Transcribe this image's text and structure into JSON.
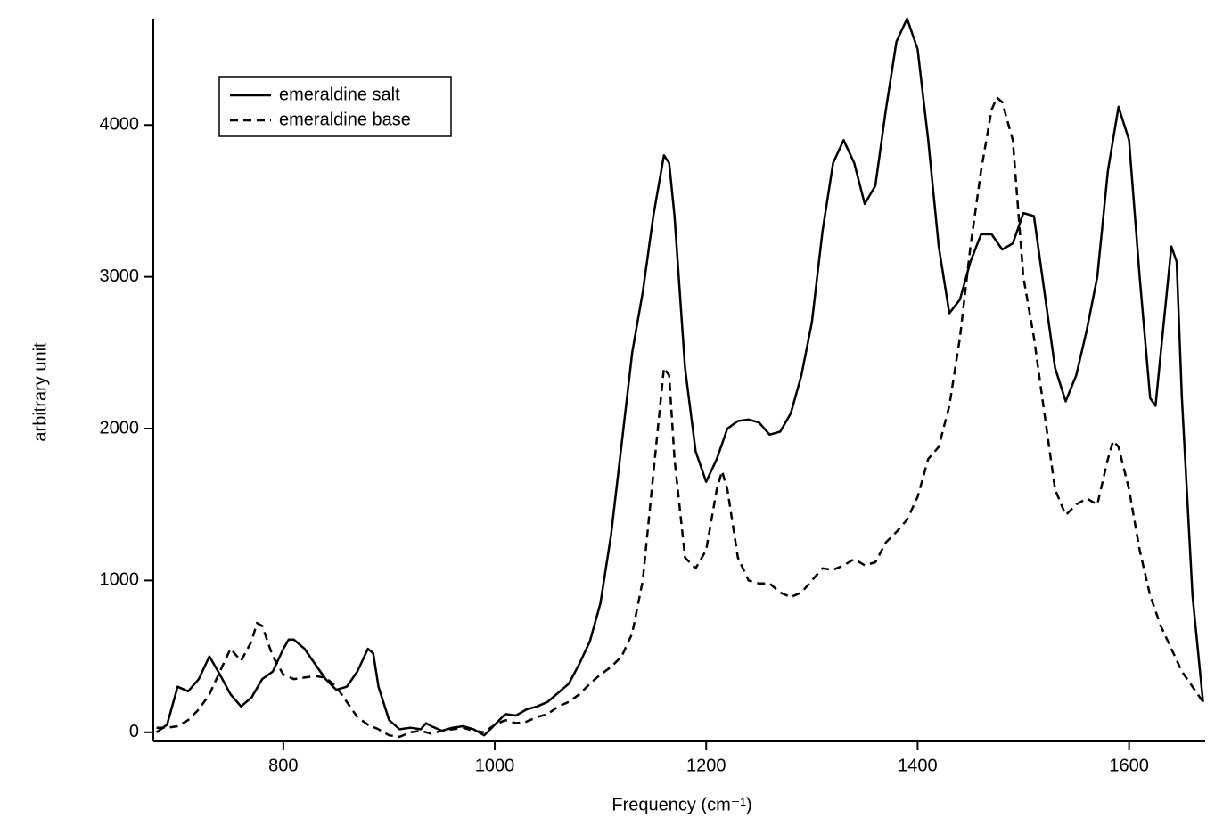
{
  "chart_data": {
    "type": "line",
    "xlabel": "Frequency (cm⁻¹)",
    "ylabel": "arbitrary unit",
    "xlim": [
      677,
      1672
    ],
    "ylim": [
      -60,
      4700
    ],
    "xticks": [
      800,
      1000,
      1200,
      1400,
      1600
    ],
    "yticks": [
      0,
      1000,
      2000,
      3000,
      4000
    ],
    "legend": "top-left",
    "series": [
      {
        "name": "emeraldine salt",
        "color": "#000000",
        "dash": "solid",
        "x": [
          680,
          690,
          700,
          710,
          720,
          730,
          740,
          750,
          760,
          770,
          780,
          790,
          800,
          805,
          810,
          820,
          830,
          840,
          850,
          860,
          870,
          880,
          885,
          890,
          900,
          910,
          920,
          930,
          935,
          940,
          950,
          960,
          970,
          980,
          990,
          1000,
          1010,
          1020,
          1030,
          1040,
          1050,
          1060,
          1070,
          1080,
          1090,
          1100,
          1110,
          1120,
          1130,
          1140,
          1150,
          1160,
          1165,
          1170,
          1180,
          1190,
          1200,
          1210,
          1220,
          1230,
          1240,
          1250,
          1260,
          1270,
          1280,
          1290,
          1300,
          1310,
          1320,
          1330,
          1340,
          1350,
          1360,
          1370,
          1380,
          1390,
          1400,
          1410,
          1420,
          1430,
          1440,
          1450,
          1460,
          1470,
          1480,
          1490,
          1500,
          1510,
          1520,
          1530,
          1540,
          1550,
          1560,
          1570,
          1580,
          1590,
          1600,
          1610,
          1620,
          1625,
          1630,
          1640,
          1645,
          1650,
          1660,
          1670
        ],
        "values": [
          0,
          50,
          300,
          270,
          350,
          500,
          380,
          250,
          170,
          230,
          350,
          400,
          550,
          610,
          610,
          550,
          450,
          350,
          280,
          300,
          400,
          550,
          520,
          300,
          80,
          20,
          30,
          20,
          60,
          40,
          10,
          30,
          40,
          20,
          -20,
          50,
          120,
          110,
          150,
          170,
          200,
          260,
          320,
          450,
          600,
          850,
          1300,
          1900,
          2500,
          2900,
          3400,
          3800,
          3750,
          3400,
          2400,
          1850,
          1650,
          1800,
          2000,
          2050,
          2060,
          2040,
          1960,
          1980,
          2100,
          2350,
          2700,
          3300,
          3750,
          3900,
          3750,
          3480,
          3600,
          4100,
          4550,
          4700,
          4500,
          3900,
          3200,
          2760,
          2850,
          3100,
          3280,
          3280,
          3180,
          3220,
          3420,
          3400,
          2900,
          2400,
          2180,
          2350,
          2650,
          3000,
          3700,
          4120,
          3900,
          3000,
          2200,
          2150,
          2500,
          3200,
          3100,
          2200,
          900,
          200
        ]
      },
      {
        "name": "emeraldine base",
        "color": "#000000",
        "dash": "dashed",
        "x": [
          680,
          690,
          700,
          710,
          720,
          730,
          740,
          750,
          760,
          770,
          775,
          780,
          790,
          800,
          810,
          820,
          830,
          840,
          850,
          860,
          870,
          880,
          890,
          900,
          910,
          920,
          930,
          940,
          950,
          960,
          970,
          980,
          990,
          1000,
          1010,
          1020,
          1030,
          1040,
          1050,
          1060,
          1070,
          1080,
          1090,
          1100,
          1110,
          1120,
          1130,
          1140,
          1150,
          1160,
          1165,
          1170,
          1180,
          1190,
          1200,
          1210,
          1215,
          1220,
          1230,
          1240,
          1250,
          1260,
          1270,
          1280,
          1290,
          1300,
          1310,
          1320,
          1330,
          1340,
          1350,
          1360,
          1370,
          1380,
          1390,
          1400,
          1410,
          1420,
          1430,
          1440,
          1450,
          1460,
          1470,
          1475,
          1480,
          1490,
          1500,
          1510,
          1520,
          1530,
          1540,
          1550,
          1560,
          1570,
          1580,
          1585,
          1590,
          1600,
          1610,
          1620,
          1630,
          1640,
          1650,
          1660,
          1670
        ],
        "values": [
          30,
          30,
          40,
          80,
          150,
          250,
          400,
          550,
          470,
          600,
          720,
          700,
          500,
          380,
          350,
          360,
          370,
          360,
          300,
          200,
          100,
          50,
          20,
          -20,
          -30,
          0,
          10,
          -10,
          10,
          20,
          30,
          10,
          0,
          50,
          80,
          60,
          70,
          100,
          120,
          170,
          200,
          250,
          320,
          380,
          430,
          500,
          650,
          1000,
          1700,
          2400,
          2350,
          1800,
          1150,
          1080,
          1200,
          1600,
          1720,
          1600,
          1150,
          1000,
          980,
          980,
          920,
          890,
          920,
          1000,
          1080,
          1070,
          1100,
          1140,
          1100,
          1120,
          1250,
          1320,
          1400,
          1550,
          1800,
          1880,
          2150,
          2600,
          3200,
          3700,
          4100,
          4180,
          4150,
          3900,
          3000,
          2600,
          2100,
          1600,
          1430,
          1500,
          1540,
          1500,
          1800,
          1920,
          1880,
          1600,
          1200,
          900,
          700,
          550,
          400,
          300,
          200
        ]
      }
    ]
  }
}
